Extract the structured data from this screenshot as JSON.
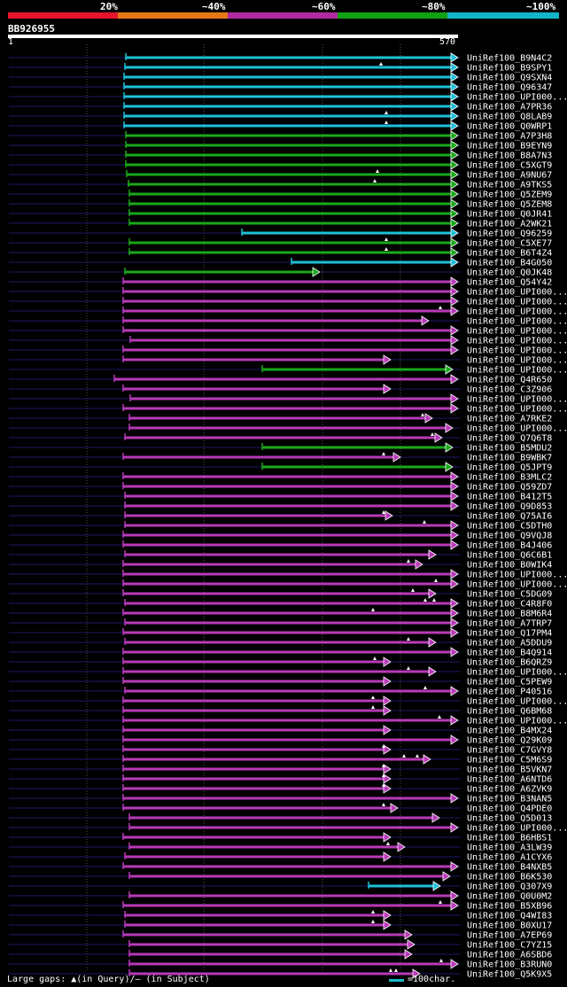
{
  "legend": {
    "labels": [
      "20%",
      "~40%",
      "~60%",
      "~80%",
      "~100%"
    ],
    "colors": [
      "#e8142c",
      "#e67816",
      "#b02aa0",
      "#12a014",
      "#12b4c8"
    ]
  },
  "query": {
    "id": "BB926955",
    "start": "1",
    "end": "570"
  },
  "colors": {
    "cyan": "#1ec0d8",
    "green": "#1aa81a",
    "magenta": "#b83ab8",
    "navy": "#1a1a6a"
  },
  "hits": [
    {
      "label": "UniRef100_B9N4C2",
      "color": "cyan",
      "start": 142,
      "end": 517,
      "gaps": []
    },
    {
      "label": "UniRef100_B9SPY1",
      "color": "cyan",
      "start": 141,
      "end": 517,
      "gaps": [
        430
      ]
    },
    {
      "label": "UniRef100_Q9SXN4",
      "color": "cyan",
      "start": 140,
      "end": 517,
      "gaps": []
    },
    {
      "label": "UniRef100_Q96347",
      "color": "cyan",
      "start": 140,
      "end": 517,
      "gaps": []
    },
    {
      "label": "UniRef100_UPI000...",
      "color": "cyan",
      "start": 140,
      "end": 517,
      "gaps": []
    },
    {
      "label": "UniRef100_A7PR36",
      "color": "cyan",
      "start": 140,
      "end": 517,
      "gaps": []
    },
    {
      "label": "UniRef100_Q8LAB9",
      "color": "cyan",
      "start": 140,
      "end": 517,
      "gaps": [
        436
      ]
    },
    {
      "label": "UniRef100_Q0WRP1",
      "color": "cyan",
      "start": 140,
      "end": 517,
      "gaps": [
        436
      ]
    },
    {
      "label": "UniRef100_A7P3H8",
      "color": "green",
      "start": 142,
      "end": 517,
      "gaps": []
    },
    {
      "label": "UniRef100_B9EYN9",
      "color": "green",
      "start": 142,
      "end": 517,
      "gaps": []
    },
    {
      "label": "UniRef100_B8A7N3",
      "color": "green",
      "start": 142,
      "end": 517,
      "gaps": []
    },
    {
      "label": "UniRef100_C5XGT9",
      "color": "green",
      "start": 142,
      "end": 517,
      "gaps": []
    },
    {
      "label": "UniRef100_A9NU67",
      "color": "green",
      "start": 143,
      "end": 517,
      "gaps": [
        426
      ]
    },
    {
      "label": "UniRef100_A9TKS5",
      "color": "green",
      "start": 145,
      "end": 517,
      "gaps": [
        423
      ]
    },
    {
      "label": "UniRef100_Q5ZEM9",
      "color": "green",
      "start": 146,
      "end": 517,
      "gaps": []
    },
    {
      "label": "UniRef100_Q5ZEM8",
      "color": "green",
      "start": 146,
      "end": 517,
      "gaps": []
    },
    {
      "label": "UniRef100_Q0JR41",
      "color": "green",
      "start": 146,
      "end": 517,
      "gaps": []
    },
    {
      "label": "UniRef100_A2WK21",
      "color": "green",
      "start": 146,
      "end": 517,
      "gaps": []
    },
    {
      "label": "UniRef100_Q96259",
      "color": "cyan",
      "start": 273,
      "end": 517,
      "gaps": []
    },
    {
      "label": "UniRef100_C5XE77",
      "color": "green",
      "start": 146,
      "end": 517,
      "gaps": [
        436
      ]
    },
    {
      "label": "UniRef100_B6T4Z4",
      "color": "green",
      "start": 146,
      "end": 517,
      "gaps": [
        436
      ]
    },
    {
      "label": "UniRef100_B4G050",
      "color": "cyan",
      "start": 329,
      "end": 517,
      "gaps": []
    },
    {
      "label": "UniRef100_Q0JK48",
      "color": "green",
      "start": 141,
      "end": 361,
      "gaps": []
    },
    {
      "label": "UniRef100_Q54Y42",
      "color": "magenta",
      "start": 139,
      "end": 517,
      "gaps": []
    },
    {
      "label": "UniRef100_UPI000...",
      "color": "magenta",
      "start": 139,
      "end": 517,
      "gaps": []
    },
    {
      "label": "UniRef100_UPI000...",
      "color": "magenta",
      "start": 139,
      "end": 517,
      "gaps": []
    },
    {
      "label": "UniRef100_UPI000...",
      "color": "magenta",
      "start": 139,
      "end": 517,
      "gaps": [
        497
      ]
    },
    {
      "label": "UniRef100_UPI000...",
      "color": "magenta",
      "start": 139,
      "end": 484,
      "gaps": []
    },
    {
      "label": "UniRef100_UPI000...",
      "color": "magenta",
      "start": 139,
      "end": 517,
      "gaps": []
    },
    {
      "label": "UniRef100_UPI000...",
      "color": "magenta",
      "start": 147,
      "end": 517,
      "gaps": []
    },
    {
      "label": "UniRef100_UPI000...",
      "color": "magenta",
      "start": 139,
      "end": 517,
      "gaps": []
    },
    {
      "label": "UniRef100_UPI000...",
      "color": "magenta",
      "start": 139,
      "end": 441,
      "gaps": []
    },
    {
      "label": "UniRef100_UPI000...",
      "color": "green",
      "start": 296,
      "end": 511,
      "gaps": []
    },
    {
      "label": "UniRef100_Q4R650",
      "color": "magenta",
      "start": 129,
      "end": 517,
      "gaps": []
    },
    {
      "label": "UniRef100_C3Z906",
      "color": "magenta",
      "start": 139,
      "end": 441,
      "gaps": []
    },
    {
      "label": "UniRef100_UPI000...",
      "color": "magenta",
      "start": 147,
      "end": 517,
      "gaps": []
    },
    {
      "label": "UniRef100_UPI000...",
      "color": "magenta",
      "start": 139,
      "end": 517,
      "gaps": []
    },
    {
      "label": "UniRef100_A7RKE2",
      "color": "magenta",
      "start": 146,
      "end": 488,
      "gaps": [
        477
      ]
    },
    {
      "label": "UniRef100_UPI000...",
      "color": "magenta",
      "start": 146,
      "end": 511,
      "gaps": []
    },
    {
      "label": "UniRef100_Q7Q6T8",
      "color": "magenta",
      "start": 141,
      "end": 499,
      "gaps": [
        488
      ]
    },
    {
      "label": "UniRef100_B5MDU2",
      "color": "green",
      "start": 296,
      "end": 511,
      "gaps": []
    },
    {
      "label": "UniRef100_B9WBK7",
      "color": "magenta",
      "start": 139,
      "end": 452,
      "gaps": [
        433
      ]
    },
    {
      "label": "UniRef100_Q5JPT9",
      "color": "green",
      "start": 296,
      "end": 511,
      "gaps": []
    },
    {
      "label": "UniRef100_B3MLC2",
      "color": "magenta",
      "start": 139,
      "end": 517,
      "gaps": []
    },
    {
      "label": "UniRef100_Q59ZD7",
      "color": "magenta",
      "start": 139,
      "end": 517,
      "gaps": []
    },
    {
      "label": "UniRef100_B412T5",
      "color": "magenta",
      "start": 141,
      "end": 517,
      "gaps": []
    },
    {
      "label": "UniRef100_Q9D853",
      "color": "magenta",
      "start": 141,
      "end": 517,
      "gaps": []
    },
    {
      "label": "UniRef100_Q75AI6",
      "color": "magenta",
      "start": 141,
      "end": 443,
      "gaps": [
        433
      ]
    },
    {
      "label": "UniRef100_C5DTH0",
      "color": "magenta",
      "start": 141,
      "end": 517,
      "gaps": [
        479
      ]
    },
    {
      "label": "UniRef100_Q9VQJ8",
      "color": "magenta",
      "start": 139,
      "end": 517,
      "gaps": []
    },
    {
      "label": "UniRef100_B4J406",
      "color": "magenta",
      "start": 139,
      "end": 517,
      "gaps": []
    },
    {
      "label": "UniRef100_Q6C6B1",
      "color": "magenta",
      "start": 141,
      "end": 492,
      "gaps": []
    },
    {
      "label": "UniRef100_B0WIK4",
      "color": "magenta",
      "start": 139,
      "end": 477,
      "gaps": [
        461
      ]
    },
    {
      "label": "UniRef100_UPI000...",
      "color": "magenta",
      "start": 139,
      "end": 517,
      "gaps": []
    },
    {
      "label": "UniRef100_UPI000...",
      "color": "magenta",
      "start": 139,
      "end": 517,
      "gaps": [
        492
      ]
    },
    {
      "label": "UniRef100_C5DG09",
      "color": "magenta",
      "start": 139,
      "end": 492,
      "gaps": [
        466
      ]
    },
    {
      "label": "UniRef100_C4R8F0",
      "color": "magenta",
      "start": 141,
      "end": 517,
      "gaps": [
        480,
        490
      ]
    },
    {
      "label": "UniRef100_B8M6R4",
      "color": "magenta",
      "start": 139,
      "end": 517,
      "gaps": [
        421
      ]
    },
    {
      "label": "UniRef100_A7TRP7",
      "color": "magenta",
      "start": 141,
      "end": 517,
      "gaps": []
    },
    {
      "label": "UniRef100_Q17PM4",
      "color": "magenta",
      "start": 139,
      "end": 517,
      "gaps": []
    },
    {
      "label": "UniRef100_A5DDU9",
      "color": "magenta",
      "start": 141,
      "end": 492,
      "gaps": [
        461
      ]
    },
    {
      "label": "UniRef100_B4Q914",
      "color": "magenta",
      "start": 139,
      "end": 517,
      "gaps": []
    },
    {
      "label": "UniRef100_B6QRZ9",
      "color": "magenta",
      "start": 139,
      "end": 441,
      "gaps": [
        423
      ]
    },
    {
      "label": "UniRef100_UPI000...",
      "color": "magenta",
      "start": 139,
      "end": 492,
      "gaps": [
        461
      ]
    },
    {
      "label": "UniRef100_C5PEW9",
      "color": "magenta",
      "start": 139,
      "end": 441,
      "gaps": []
    },
    {
      "label": "UniRef100_P40516",
      "color": "magenta",
      "start": 141,
      "end": 517,
      "gaps": [
        480
      ]
    },
    {
      "label": "UniRef100_UPI000...",
      "color": "magenta",
      "start": 139,
      "end": 441,
      "gaps": [
        421
      ]
    },
    {
      "label": "UniRef100_Q6BM68",
      "color": "magenta",
      "start": 139,
      "end": 441,
      "gaps": [
        421
      ]
    },
    {
      "label": "UniRef100_UPI000...",
      "color": "magenta",
      "start": 139,
      "end": 517,
      "gaps": [
        496
      ]
    },
    {
      "label": "UniRef100_B4MX24",
      "color": "magenta",
      "start": 139,
      "end": 441,
      "gaps": []
    },
    {
      "label": "UniRef100_Q29K09",
      "color": "magenta",
      "start": 139,
      "end": 517,
      "gaps": []
    },
    {
      "label": "UniRef100_C7GVY8",
      "color": "magenta",
      "start": 139,
      "end": 441,
      "gaps": [
        433
      ]
    },
    {
      "label": "UniRef100_C5M6S9",
      "color": "magenta",
      "start": 139,
      "end": 486,
      "gaps": [
        456,
        471
      ]
    },
    {
      "label": "UniRef100_B5VKN7",
      "color": "magenta",
      "start": 139,
      "end": 441,
      "gaps": [
        433
      ]
    },
    {
      "label": "UniRef100_A6NTD6",
      "color": "magenta",
      "start": 139,
      "end": 441,
      "gaps": [
        433
      ]
    },
    {
      "label": "UniRef100_A6ZVK9",
      "color": "magenta",
      "start": 139,
      "end": 441,
      "gaps": [
        433
      ]
    },
    {
      "label": "UniRef100_B3NAN5",
      "color": "magenta",
      "start": 139,
      "end": 517,
      "gaps": []
    },
    {
      "label": "UniRef100_Q4PDE0",
      "color": "magenta",
      "start": 139,
      "end": 449,
      "gaps": [
        433
      ]
    },
    {
      "label": "UniRef100_Q5D013",
      "color": "magenta",
      "start": 146,
      "end": 496,
      "gaps": []
    },
    {
      "label": "UniRef100_UPI000...",
      "color": "magenta",
      "start": 146,
      "end": 517,
      "gaps": []
    },
    {
      "label": "UniRef100_B6HBS1",
      "color": "magenta",
      "start": 139,
      "end": 441,
      "gaps": []
    },
    {
      "label": "UniRef100_A3LW39",
      "color": "magenta",
      "start": 146,
      "end": 457,
      "gaps": [
        438
      ]
    },
    {
      "label": "UniRef100_A1CYX6",
      "color": "magenta",
      "start": 141,
      "end": 441,
      "gaps": []
    },
    {
      "label": "UniRef100_B4NXB5",
      "color": "magenta",
      "start": 139,
      "end": 517,
      "gaps": []
    },
    {
      "label": "UniRef100_B6K530",
      "color": "magenta",
      "start": 146,
      "end": 508,
      "gaps": []
    },
    {
      "label": "UniRef100_Q307X9",
      "color": "cyan",
      "start": 416,
      "end": 497,
      "gaps": []
    },
    {
      "label": "UniRef100_Q0U0M2",
      "color": "magenta",
      "start": 146,
      "end": 517,
      "gaps": []
    },
    {
      "label": "UniRef100_B5XB96",
      "color": "magenta",
      "start": 139,
      "end": 517,
      "gaps": [
        497
      ]
    },
    {
      "label": "UniRef100_Q4WI83",
      "color": "magenta",
      "start": 141,
      "end": 441,
      "gaps": [
        421
      ]
    },
    {
      "label": "UniRef100_B0XU17",
      "color": "magenta",
      "start": 141,
      "end": 441,
      "gaps": [
        421
      ]
    },
    {
      "label": "UniRef100_A7EP69",
      "color": "magenta",
      "start": 139,
      "end": 465,
      "gaps": []
    },
    {
      "label": "UniRef100_C7YZ15",
      "color": "magenta",
      "start": 146,
      "end": 468,
      "gaps": []
    },
    {
      "label": "UniRef100_A6SBD6",
      "color": "magenta",
      "start": 146,
      "end": 465,
      "gaps": []
    },
    {
      "label": "UniRef100_B3RUN0",
      "color": "magenta",
      "start": 146,
      "end": 517,
      "gaps": [
        498
      ]
    },
    {
      "label": "UniRef100_Q5K9X5",
      "color": "magenta",
      "start": 146,
      "end": 474,
      "gaps": [
        441,
        447
      ]
    }
  ],
  "footer": {
    "gaps_text": "Large gaps: ▲(in Query)/— (in Subject)",
    "scale_text": "=100char."
  }
}
